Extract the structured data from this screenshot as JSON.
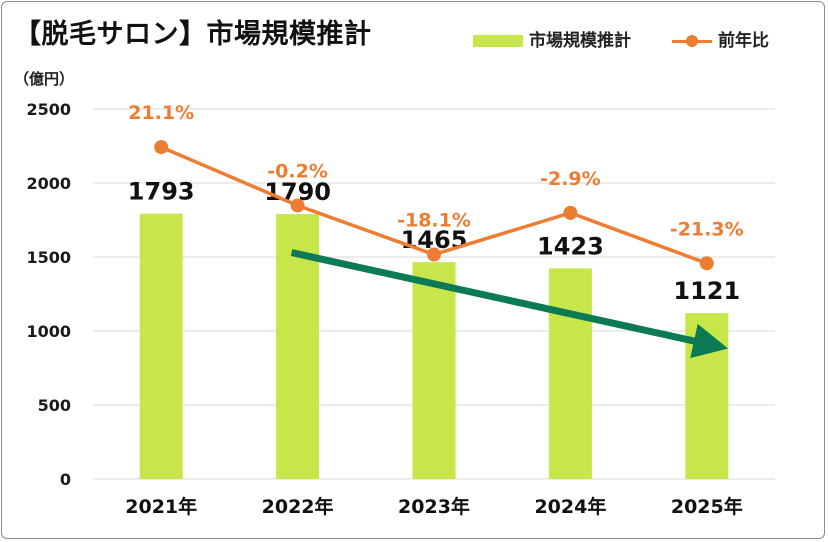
{
  "title": "【脱毛サロン】市場規模推計",
  "unit_label": "（億円）",
  "legend": {
    "bar_label": "市場規模推計",
    "line_label": "前年比"
  },
  "colors": {
    "bar": "#c6e64a",
    "line": "#ed7d31",
    "arrow": "#0b7a55",
    "grid": "#d9d9d9",
    "axis_text": "#1a1a1a"
  },
  "chart_data": {
    "type": "bar",
    "categories": [
      "2021年",
      "2022年",
      "2023年",
      "2024年",
      "2025年"
    ],
    "series": [
      {
        "name": "市場規模推計",
        "type": "bar",
        "values": [
          1793,
          1790,
          1465,
          1423,
          1121
        ],
        "data_labels": [
          "1793",
          "1790",
          "1465",
          "1423",
          "1121"
        ]
      },
      {
        "name": "前年比",
        "type": "line",
        "values": [
          21.1,
          -0.2,
          -18.1,
          -2.9,
          -21.3
        ],
        "data_labels": [
          "21.1%",
          "-0.2%",
          "-18.1%",
          "-2.9%",
          "-21.3%"
        ]
      }
    ],
    "y_ticks": [
      "0",
      "500",
      "1000",
      "1500",
      "2000",
      "2500"
    ],
    "ylim": [
      0,
      2500
    ],
    "y2lim": [
      -100,
      35
    ],
    "grid": true,
    "legend_position": "top-right",
    "annotation": "downward-trend-arrow"
  }
}
